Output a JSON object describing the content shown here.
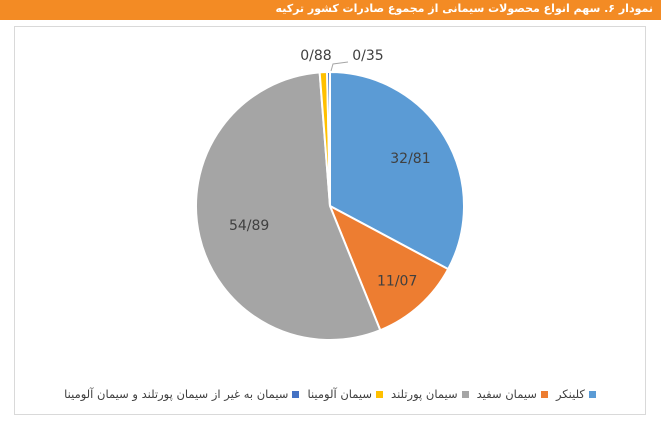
{
  "header": {
    "title": "نمودار ۶. سهم انواع محصولات سیمانی از مجموع صادرات کشور ترکیه"
  },
  "chart_data": {
    "type": "pie",
    "title": "",
    "slices": [
      {
        "name": "کلینکر",
        "value": 32.81,
        "label": "32/81",
        "color": "#5B9BD5"
      },
      {
        "name": "سیمان سفید",
        "value": 11.07,
        "label": "11/07",
        "color": "#ED7D31"
      },
      {
        "name": "سیمان پورتلند",
        "value": 54.89,
        "label": "54/89",
        "color": "#A5A5A5"
      },
      {
        "name": "سیمان آلومینا",
        "value": 0.88,
        "label": "0/88",
        "color": "#FFC000"
      },
      {
        "name": "سیمان به غیر از سیمان پورتلند و سیمان آلومینا",
        "value": 0.35,
        "label": "0/35",
        "color": "#4472C4"
      }
    ],
    "legend_position": "bottom"
  }
}
